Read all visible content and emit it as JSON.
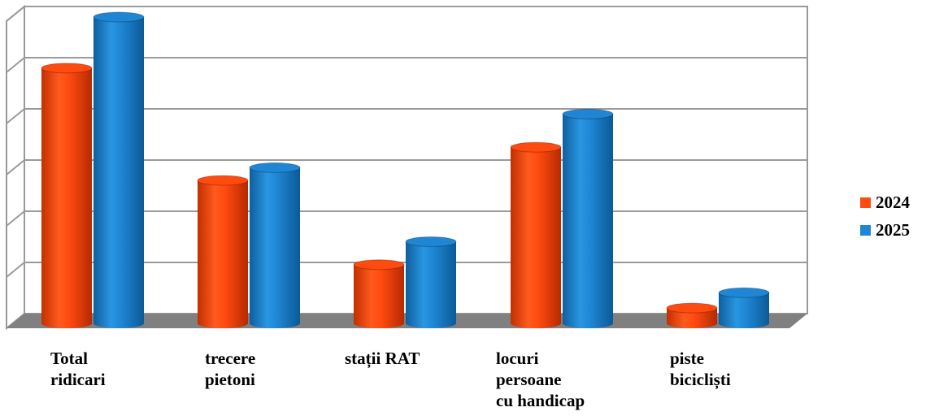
{
  "chart_data": {
    "type": "bar",
    "categories": [
      [
        "Total",
        "ridicari"
      ],
      [
        "trecere",
        "pietoni"
      ],
      [
        "stații RAT"
      ],
      [
        "locuri",
        "persoane",
        "cu handicap"
      ],
      [
        "piste",
        "bicicliști"
      ]
    ],
    "series": [
      {
        "name": "2024",
        "color": "#ff4a10",
        "values": [
          5.0,
          2.8,
          1.15,
          3.45,
          0.3
        ]
      },
      {
        "name": "2025",
        "color": "#1e86d4",
        "values": [
          6.0,
          3.05,
          1.6,
          4.1,
          0.6
        ]
      }
    ],
    "ylim": [
      0,
      6
    ],
    "y_ticks": [
      0,
      1,
      2,
      3,
      4,
      5,
      6
    ],
    "grid": true,
    "legend_position": "right",
    "style": "3d-cylinder"
  },
  "legend": {
    "items": [
      {
        "label": "2024",
        "color": "#ff4a10"
      },
      {
        "label": "2025",
        "color": "#1e86d4"
      }
    ]
  }
}
